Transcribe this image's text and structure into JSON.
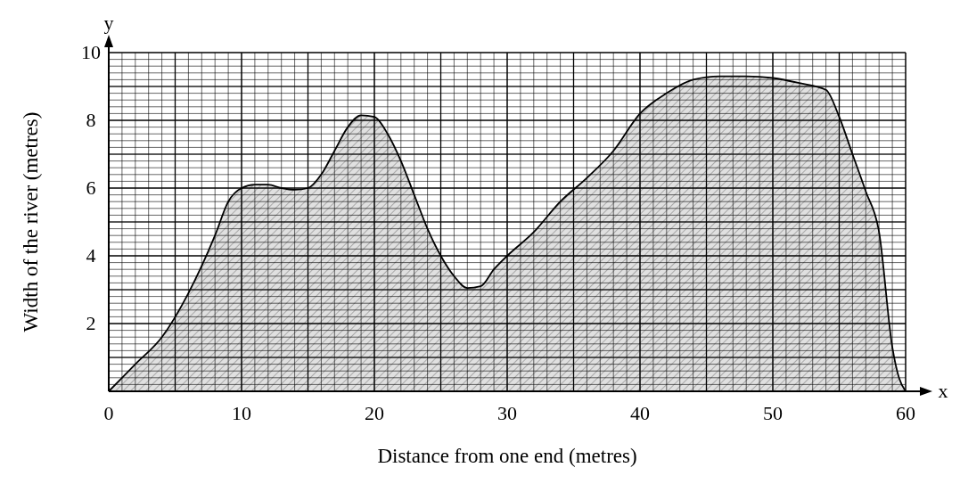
{
  "chart_data": {
    "type": "area",
    "xlabel": "Distance from one end (metres)",
    "ylabel": "Width of the river (metres)",
    "annotations": [
      "x",
      "y"
    ],
    "xlim": [
      0,
      60
    ],
    "ylim": [
      0,
      10
    ],
    "xticks": [
      0,
      10,
      20,
      30,
      40,
      50,
      60
    ],
    "yticks": [
      {
        "value": 0,
        "label": null
      },
      2,
      4,
      6,
      8,
      10
    ],
    "grid": true,
    "series": [
      {
        "color": "#000000",
        "x": [
          0,
          2,
          4,
          6,
          8,
          9,
          10,
          11,
          12,
          13,
          14,
          15,
          16,
          17,
          18,
          19,
          20,
          21,
          22,
          23,
          24,
          25,
          26,
          27,
          28,
          29,
          30,
          32,
          34,
          36,
          38,
          40,
          42,
          44,
          46,
          48,
          50,
          52,
          54,
          55,
          56,
          57,
          58,
          59,
          59.5,
          60
        ],
        "values": [
          0,
          0.8,
          1.6,
          2.9,
          4.6,
          5.6,
          6.0,
          6.1,
          6.1,
          6.0,
          5.95,
          6.0,
          6.4,
          7.1,
          7.8,
          8.15,
          8.1,
          7.6,
          6.8,
          5.8,
          4.8,
          4.0,
          3.4,
          3.05,
          3.1,
          3.6,
          4.0,
          4.7,
          5.6,
          6.3,
          7.1,
          8.2,
          8.8,
          9.2,
          9.3,
          9.3,
          9.25,
          9.1,
          8.9,
          8.1,
          7.0,
          5.9,
          4.7,
          1.3,
          0.4,
          0
        ]
      }
    ]
  }
}
